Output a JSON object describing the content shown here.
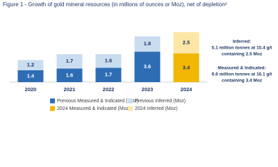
{
  "chart_data": {
    "type": "stacked-bar",
    "title": "Figure 1 - Growth of gold mineral resources (in millions of ounces or Moz), net of depletion²",
    "categories": [
      "2020",
      "2021",
      "2022",
      "2023",
      "2024"
    ],
    "series": [
      {
        "name": "Previous Measured & Indicated (Moz)",
        "color": "#2e6db4",
        "values": [
          1.4,
          1.6,
          1.7,
          3.6,
          null
        ]
      },
      {
        "name": "Previous Inferred (Moz)",
        "color": "#c9dcf0",
        "values": [
          1.2,
          1.7,
          1.6,
          1.8,
          null
        ]
      },
      {
        "name": "2024 Measured & Indicated (Moz)",
        "color": "#f2b705",
        "values": [
          null,
          null,
          null,
          null,
          3.4
        ]
      },
      {
        "name": "2024 Inferred (Moz)",
        "color": "#fce7a6",
        "values": [
          null,
          null,
          null,
          null,
          2.5
        ]
      }
    ],
    "ylim": [
      0,
      6
    ],
    "annotations": [
      {
        "lines": [
          "Inferred:",
          "5.1 million tonnes at 15.4 g/t",
          "containing 2.5 Moz"
        ]
      },
      {
        "lines": [
          "Measured & Indicated:",
          "6.6 million tonnes at 16.1 g/t",
          "containing 3.4 Moz"
        ]
      }
    ]
  }
}
